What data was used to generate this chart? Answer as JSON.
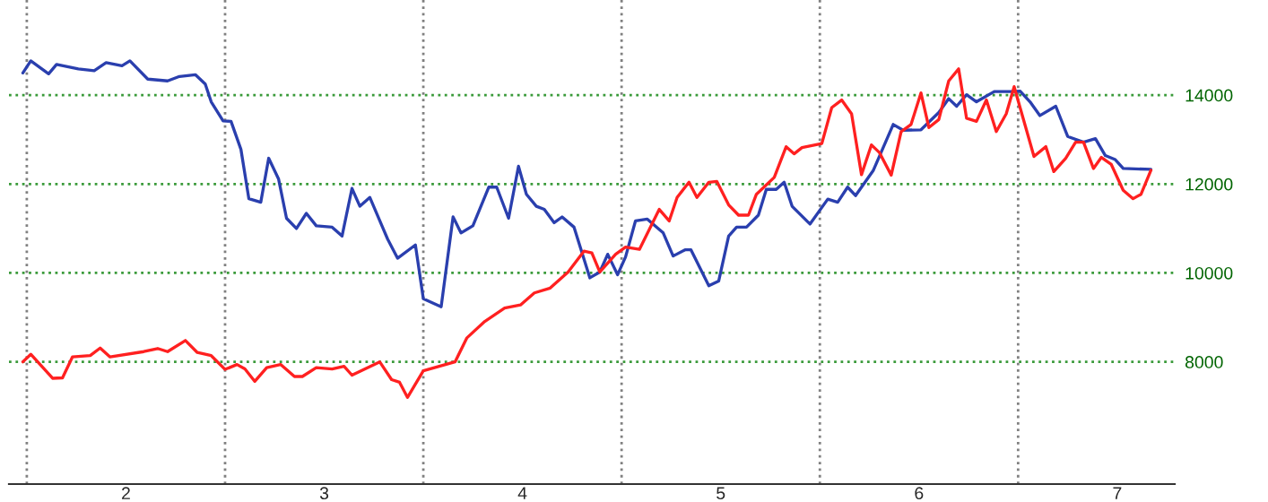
{
  "chart_data": {
    "type": "line",
    "xlim": [
      1.41,
      7.29
    ],
    "ylim": [
      5250,
      16140
    ],
    "xticks": [
      {
        "value": 1.5,
        "label": null
      },
      {
        "value": 2,
        "label": "2"
      },
      {
        "value": 2.5,
        "label": null
      },
      {
        "value": 3,
        "label": "3"
      },
      {
        "value": 3.5,
        "label": null
      },
      {
        "value": 4,
        "label": "4"
      },
      {
        "value": 4.5,
        "label": null
      },
      {
        "value": 5,
        "label": "5"
      },
      {
        "value": 5.5,
        "label": null
      },
      {
        "value": 6,
        "label": "6"
      },
      {
        "value": 6.5,
        "label": null
      },
      {
        "value": 7,
        "label": "7"
      }
    ],
    "yticks": [
      8000,
      10000,
      12000,
      14000
    ],
    "grid": "y",
    "legend": false,
    "marker": "none",
    "line_style": "solid",
    "ref_lines": [
      {
        "axis": "x",
        "value": 1.5,
        "color": "#808080",
        "line_style": "dotted"
      },
      {
        "axis": "x",
        "value": 2.5,
        "color": "#808080",
        "line_style": "dotted"
      },
      {
        "axis": "x",
        "value": 3.5,
        "color": "#808080",
        "line_style": "dotted"
      },
      {
        "axis": "x",
        "value": 4.5,
        "color": "#808080",
        "line_style": "dotted"
      },
      {
        "axis": "x",
        "value": 5.5,
        "color": "#808080",
        "line_style": "dotted"
      },
      {
        "axis": "x",
        "value": 6.5,
        "color": "#808080",
        "line_style": "dotted"
      }
    ],
    "series": [
      {
        "color": "#2a3fae",
        "x": [
          1.48,
          1.52,
          1.61,
          1.65,
          1.76,
          1.84,
          1.9,
          1.98,
          2.02,
          2.11,
          2.21,
          2.27,
          2.35,
          2.4,
          2.43,
          2.49,
          2.53,
          2.58,
          2.62,
          2.68,
          2.72,
          2.77,
          2.81,
          2.86,
          2.91,
          2.96,
          3.04,
          3.09,
          3.14,
          3.18,
          3.23,
          3.32,
          3.37,
          3.46,
          3.5,
          3.59,
          3.65,
          3.69,
          3.75,
          3.83,
          3.87,
          3.93,
          3.98,
          4.02,
          4.07,
          4.11,
          4.16,
          4.2,
          4.26,
          4.34,
          4.39,
          4.43,
          4.48,
          4.52,
          4.57,
          4.63,
          4.71,
          4.76,
          4.82,
          4.85,
          4.94,
          4.99,
          5.04,
          5.08,
          5.13,
          5.19,
          5.23,
          5.28,
          5.32,
          5.36,
          5.45,
          5.54,
          5.59,
          5.64,
          5.68,
          5.77,
          5.87,
          5.92,
          6.01,
          6.1,
          6.15,
          6.19,
          6.24,
          6.29,
          6.38,
          6.47,
          6.51,
          6.56,
          6.61,
          6.69,
          6.75,
          6.83,
          6.89,
          6.94,
          6.99,
          7.03,
          7.17
        ],
        "values": [
          14500,
          14770,
          14480,
          14690,
          14590,
          14550,
          14730,
          14660,
          14770,
          14360,
          14320,
          14420,
          14460,
          14250,
          13850,
          13420,
          13410,
          12780,
          11670,
          11590,
          12580,
          12110,
          11230,
          11000,
          11340,
          11060,
          11030,
          10830,
          11900,
          11500,
          11700,
          10760,
          10330,
          10630,
          9420,
          9240,
          11260,
          10900,
          11060,
          11930,
          11930,
          11230,
          12400,
          11770,
          11500,
          11430,
          11130,
          11260,
          11030,
          9890,
          10020,
          10420,
          9960,
          10360,
          11170,
          11210,
          10900,
          10380,
          10520,
          10520,
          9710,
          9820,
          10830,
          11030,
          11030,
          11300,
          11880,
          11880,
          12040,
          11500,
          11100,
          11660,
          11590,
          11930,
          11740,
          12310,
          13340,
          13210,
          13220,
          13610,
          13920,
          13750,
          14010,
          13850,
          14080,
          14080,
          14090,
          13850,
          13540,
          13750,
          13070,
          12940,
          13020,
          12640,
          12550,
          12350,
          12330
        ]
      },
      {
        "color": "#ff2020",
        "x": [
          1.48,
          1.52,
          1.63,
          1.68,
          1.73,
          1.82,
          1.87,
          1.92,
          2.09,
          2.16,
          2.21,
          2.3,
          2.36,
          2.43,
          2.5,
          2.56,
          2.6,
          2.65,
          2.71,
          2.78,
          2.85,
          2.89,
          2.96,
          3.04,
          3.1,
          3.14,
          3.28,
          3.34,
          3.38,
          3.42,
          3.5,
          3.58,
          3.66,
          3.72,
          3.81,
          3.91,
          3.99,
          4.06,
          4.14,
          4.23,
          4.31,
          4.35,
          4.39,
          4.47,
          4.52,
          4.59,
          4.69,
          4.74,
          4.78,
          4.84,
          4.88,
          4.94,
          4.98,
          5.04,
          5.09,
          5.14,
          5.18,
          5.27,
          5.33,
          5.37,
          5.41,
          5.51,
          5.56,
          5.61,
          5.66,
          5.71,
          5.76,
          5.8,
          5.86,
          5.91,
          5.96,
          6.01,
          6.05,
          6.1,
          6.15,
          6.2,
          6.24,
          6.29,
          6.34,
          6.39,
          6.44,
          6.48,
          6.58,
          6.64,
          6.68,
          6.74,
          6.79,
          6.83,
          6.88,
          6.92,
          6.97,
          7.03,
          7.08,
          7.12,
          7.17
        ],
        "values": [
          8000,
          8170,
          7630,
          7640,
          8110,
          8140,
          8310,
          8110,
          8230,
          8300,
          8230,
          8480,
          8210,
          8140,
          7830,
          7940,
          7840,
          7560,
          7870,
          7940,
          7670,
          7670,
          7870,
          7840,
          7900,
          7700,
          8000,
          7600,
          7540,
          7200,
          7800,
          7900,
          8000,
          8540,
          8910,
          9210,
          9280,
          9550,
          9660,
          10020,
          10490,
          10450,
          10020,
          10420,
          10580,
          10530,
          11430,
          11170,
          11700,
          12040,
          11700,
          12040,
          12060,
          11530,
          11300,
          11300,
          11770,
          12150,
          12840,
          12680,
          12820,
          12910,
          13720,
          13890,
          13580,
          12210,
          12880,
          12710,
          12200,
          13180,
          13340,
          14050,
          13270,
          13450,
          14320,
          14590,
          13480,
          13410,
          13890,
          13180,
          13580,
          14190,
          12620,
          12840,
          12280,
          12580,
          12940,
          12940,
          12350,
          12600,
          12440,
          11860,
          11670,
          11770,
          12310
        ]
      }
    ]
  }
}
